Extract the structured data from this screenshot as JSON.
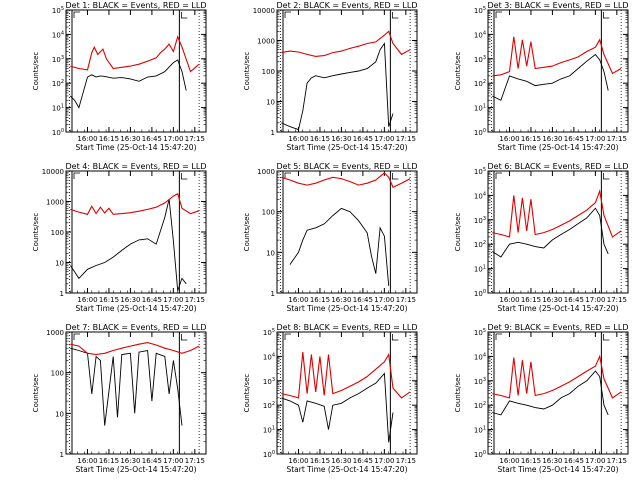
{
  "figure": {
    "ylabel": "Counts/sec",
    "xlabel": "Start Time (25-Oct-14 15:47:20)",
    "colors": {
      "events": "#000000",
      "lld": "#e00000",
      "marker": "#000000"
    }
  },
  "chart_data": [
    {
      "type": "line",
      "title": "Det 1: BLACK = Events, RED = LLD",
      "ylabel": "Counts/sec",
      "xlabel": "Start Time (25-Oct-14 15:47:20)",
      "x_ticks": [
        "16:00",
        "16:15",
        "16:30",
        "16:45",
        "17:00",
        "17:15"
      ],
      "y_scale": "log",
      "y_ticks": [
        "10^0",
        "10^1",
        "10^2",
        "10^3",
        "10^4",
        "10^5"
      ],
      "ylim": [
        1,
        100000
      ],
      "series": [
        {
          "color": "#000000",
          "x": [
            15.8,
            15.85,
            15.9,
            16.0,
            16.05,
            16.1,
            16.15,
            16.2,
            16.3,
            16.4,
            16.5,
            16.6,
            16.7,
            16.8,
            16.9,
            17.0,
            17.05,
            17.1,
            17.15
          ],
          "y": [
            30,
            20,
            10,
            180,
            220,
            180,
            200,
            190,
            160,
            170,
            150,
            120,
            180,
            200,
            300,
            700,
            900,
            300,
            50
          ]
        },
        {
          "color": "#e00000",
          "x": [
            15.8,
            15.9,
            16.0,
            16.05,
            16.08,
            16.12,
            16.18,
            16.22,
            16.3,
            16.4,
            16.5,
            16.6,
            16.7,
            16.8,
            16.85,
            16.9,
            16.95,
            17.0,
            17.05,
            17.1,
            17.2,
            17.3
          ],
          "y": [
            500,
            400,
            350,
            1800,
            3000,
            1500,
            2500,
            1000,
            400,
            450,
            500,
            600,
            800,
            1100,
            1800,
            2500,
            4000,
            2000,
            8000,
            3000,
            300,
            600
          ]
        }
      ]
    },
    {
      "type": "line",
      "title": "Det 2: BLACK = Events, RED = LLD",
      "ylabel": "Counts/sec",
      "xlabel": "Start Time (25-Oct-14 15:47:20)",
      "x_ticks": [
        "16:00",
        "16:15",
        "16:30",
        "16:45",
        "17:00",
        "17:15"
      ],
      "y_scale": "log",
      "y_ticks": [
        "1",
        "10",
        "100",
        "1000",
        "10000"
      ],
      "ylim": [
        1,
        10000
      ],
      "series": [
        {
          "color": "#000000",
          "x": [
            15.8,
            15.9,
            16.0,
            16.05,
            16.1,
            16.15,
            16.2,
            16.3,
            16.4,
            16.5,
            16.6,
            16.7,
            16.8,
            16.9,
            16.95,
            17.0,
            17.05,
            17.1
          ],
          "y": [
            2,
            1.5,
            1.2,
            5,
            40,
            60,
            70,
            60,
            70,
            80,
            90,
            100,
            120,
            200,
            500,
            800,
            1.5,
            4
          ]
        },
        {
          "color": "#e00000",
          "x": [
            15.8,
            15.9,
            16.0,
            16.1,
            16.2,
            16.3,
            16.4,
            16.5,
            16.6,
            16.7,
            16.8,
            16.9,
            17.0,
            17.05,
            17.1,
            17.2,
            17.3
          ],
          "y": [
            400,
            450,
            420,
            350,
            300,
            320,
            400,
            450,
            550,
            650,
            800,
            900,
            1500,
            2000,
            800,
            350,
            500
          ]
        }
      ]
    },
    {
      "type": "line",
      "title": "Det 3: BLACK = Events, RED = LLD",
      "ylabel": "Counts/sec",
      "xlabel": "Start Time (25-Oct-14 15:47:20)",
      "x_ticks": [
        "16:00",
        "16:15",
        "16:30",
        "16:45",
        "17:00",
        "17:15"
      ],
      "y_scale": "log",
      "y_ticks": [
        "10^0",
        "10^1",
        "10^2",
        "10^3",
        "10^4",
        "10^5"
      ],
      "ylim": [
        1,
        100000
      ],
      "series": [
        {
          "color": "#000000",
          "x": [
            15.8,
            15.9,
            16.0,
            16.1,
            16.2,
            16.3,
            16.4,
            16.5,
            16.6,
            16.7,
            16.8,
            16.9,
            17.0,
            17.05,
            17.1,
            17.15
          ],
          "y": [
            30,
            20,
            200,
            150,
            120,
            80,
            90,
            100,
            150,
            200,
            400,
            800,
            1500,
            900,
            300,
            50
          ]
        },
        {
          "color": "#e00000",
          "x": [
            15.8,
            15.9,
            16.0,
            16.05,
            16.1,
            16.15,
            16.2,
            16.25,
            16.3,
            16.4,
            16.5,
            16.6,
            16.7,
            16.8,
            16.9,
            17.0,
            17.05,
            17.1,
            17.2,
            17.3
          ],
          "y": [
            200,
            220,
            300,
            8000,
            400,
            6000,
            500,
            5000,
            400,
            450,
            500,
            700,
            900,
            1200,
            2000,
            3000,
            6000,
            1500,
            250,
            400
          ]
        }
      ]
    },
    {
      "type": "line",
      "title": "Det 4: BLACK = Events, RED = LLD",
      "ylabel": "Counts/sec",
      "xlabel": "Start Time (25-Oct-14 15:47:20)",
      "x_ticks": [
        "16:00",
        "16:15",
        "16:30",
        "16:45",
        "17:00",
        "17:15"
      ],
      "y_scale": "log",
      "y_ticks": [
        "1",
        "10",
        "100",
        "1000",
        "10000"
      ],
      "ylim": [
        1,
        10000
      ],
      "series": [
        {
          "color": "#000000",
          "x": [
            15.8,
            15.85,
            15.9,
            16.0,
            16.1,
            16.2,
            16.3,
            16.4,
            16.5,
            16.6,
            16.7,
            16.8,
            16.9,
            16.95,
            17.0,
            17.05,
            17.1,
            17.15
          ],
          "y": [
            8,
            5,
            3,
            6,
            8,
            10,
            15,
            25,
            40,
            55,
            60,
            40,
            300,
            1200,
            50,
            1.2,
            3,
            2
          ]
        },
        {
          "color": "#e00000",
          "x": [
            15.8,
            15.9,
            16.0,
            16.05,
            16.1,
            16.15,
            16.2,
            16.25,
            16.3,
            16.4,
            16.5,
            16.6,
            16.7,
            16.8,
            16.9,
            17.0,
            17.05,
            17.1,
            17.2,
            17.3
          ],
          "y": [
            550,
            450,
            380,
            700,
            400,
            650,
            420,
            600,
            380,
            400,
            430,
            480,
            550,
            650,
            900,
            1500,
            1800,
            600,
            400,
            500
          ]
        }
      ]
    },
    {
      "type": "line",
      "title": "Det 5: BLACK = Events, RED = LLD",
      "ylabel": "Counts/sec",
      "xlabel": "Start Time (25-Oct-14 15:47:20)",
      "x_ticks": [
        "16:00",
        "16:15",
        "16:30",
        "16:45",
        "17:00",
        "17:15"
      ],
      "y_scale": "log",
      "y_ticks": [
        "1",
        "10",
        "100",
        "1000"
      ],
      "ylim": [
        1,
        1000
      ],
      "series": [
        {
          "color": "#000000",
          "x": [
            15.9,
            16.0,
            16.05,
            16.1,
            16.2,
            16.3,
            16.4,
            16.5,
            16.6,
            16.7,
            16.8,
            16.85,
            16.9,
            16.95,
            17.0,
            17.05
          ],
          "y": [
            5,
            10,
            20,
            35,
            40,
            50,
            80,
            120,
            100,
            60,
            30,
            8,
            3,
            40,
            25,
            1.5
          ]
        },
        {
          "color": "#e00000",
          "x": [
            15.8,
            15.9,
            16.0,
            16.1,
            16.2,
            16.3,
            16.4,
            16.5,
            16.6,
            16.7,
            16.8,
            16.9,
            17.0,
            17.05,
            17.1,
            17.2,
            17.3
          ],
          "y": [
            700,
            600,
            500,
            450,
            500,
            600,
            700,
            650,
            550,
            450,
            500,
            600,
            900,
            700,
            400,
            500,
            650
          ]
        }
      ]
    },
    {
      "type": "line",
      "title": "Det 6: BLACK = Events, RED = LLD",
      "ylabel": "Counts/sec",
      "xlabel": "Start Time (25-Oct-14 15:47:20)",
      "x_ticks": [
        "16:00",
        "16:15",
        "16:30",
        "16:45",
        "17:00",
        "17:15"
      ],
      "y_scale": "log",
      "y_ticks": [
        "10^0",
        "10^1",
        "10^2",
        "10^3",
        "10^4",
        "10^5"
      ],
      "ylim": [
        1,
        100000
      ],
      "series": [
        {
          "color": "#000000",
          "x": [
            15.8,
            15.9,
            16.0,
            16.1,
            16.2,
            16.3,
            16.4,
            16.5,
            16.6,
            16.7,
            16.8,
            16.9,
            17.0,
            17.05,
            17.1,
            17.15
          ],
          "y": [
            50,
            30,
            100,
            120,
            100,
            80,
            70,
            150,
            250,
            400,
            700,
            1200,
            3000,
            1500,
            100,
            40
          ]
        },
        {
          "color": "#e00000",
          "x": [
            15.8,
            15.9,
            16.0,
            16.05,
            16.1,
            16.15,
            16.2,
            16.25,
            16.3,
            16.4,
            16.5,
            16.6,
            16.7,
            16.8,
            16.9,
            17.0,
            17.05,
            17.1,
            17.2,
            17.3
          ],
          "y": [
            300,
            250,
            200,
            10000,
            300,
            8000,
            350,
            7000,
            250,
            300,
            400,
            600,
            900,
            1500,
            2500,
            5000,
            15000,
            1500,
            200,
            350
          ]
        }
      ]
    },
    {
      "type": "line",
      "title": "Det 7: BLACK = Events, RED = LLD",
      "ylabel": "Counts/sec",
      "xlabel": "Start Time (25-Oct-14 15:47:20)",
      "x_ticks": [
        "16:00",
        "16:15",
        "16:30",
        "16:45",
        "17:00",
        "17:15"
      ],
      "y_scale": "log",
      "y_ticks": [
        "1",
        "10",
        "100",
        "1000"
      ],
      "ylim": [
        1,
        1000
      ],
      "series": [
        {
          "color": "#000000",
          "x": [
            15.8,
            15.9,
            16.0,
            16.05,
            16.1,
            16.15,
            16.2,
            16.3,
            16.35,
            16.4,
            16.5,
            16.55,
            16.6,
            16.7,
            16.75,
            16.8,
            16.9,
            16.95,
            17.0,
            17.05,
            17.1
          ],
          "y": [
            400,
            350,
            300,
            30,
            250,
            200,
            5,
            250,
            8,
            280,
            300,
            10,
            320,
            350,
            20,
            300,
            250,
            30,
            200,
            40,
            5
          ]
        },
        {
          "color": "#e00000",
          "x": [
            15.8,
            15.9,
            16.0,
            16.1,
            16.2,
            16.3,
            16.4,
            16.5,
            16.6,
            16.7,
            16.8,
            16.9,
            17.0,
            17.1,
            17.2,
            17.3
          ],
          "y": [
            500,
            450,
            300,
            280,
            300,
            350,
            400,
            450,
            500,
            550,
            480,
            400,
            350,
            300,
            350,
            450
          ]
        }
      ]
    },
    {
      "type": "line",
      "title": "Det 8: BLACK = Events, RED = LLD",
      "ylabel": "Counts/sec",
      "xlabel": "Start Time (25-Oct-14 15:47:20)",
      "x_ticks": [
        "16:00",
        "16:15",
        "16:30",
        "16:45",
        "17:00",
        "17:15"
      ],
      "y_scale": "log",
      "y_ticks": [
        "10^0",
        "10^1",
        "10^2",
        "10^3",
        "10^4",
        "10^5"
      ],
      "ylim": [
        1,
        100000
      ],
      "series": [
        {
          "color": "#000000",
          "x": [
            15.8,
            15.9,
            16.0,
            16.05,
            16.1,
            16.2,
            16.3,
            16.35,
            16.4,
            16.5,
            16.6,
            16.7,
            16.8,
            16.9,
            17.0,
            17.05,
            17.1
          ],
          "y": [
            200,
            150,
            100,
            20,
            150,
            120,
            90,
            10,
            100,
            120,
            200,
            300,
            500,
            800,
            2000,
            3,
            50
          ]
        },
        {
          "color": "#e00000",
          "x": [
            15.8,
            15.9,
            16.0,
            16.05,
            16.1,
            16.15,
            16.2,
            16.25,
            16.3,
            16.35,
            16.4,
            16.5,
            16.6,
            16.7,
            16.8,
            16.9,
            17.0,
            17.05,
            17.1,
            17.2,
            17.3
          ],
          "y": [
            300,
            250,
            200,
            15000,
            300,
            12000,
            350,
            10000,
            250,
            12000,
            300,
            400,
            600,
            900,
            1500,
            3000,
            6000,
            12000,
            500,
            200,
            350
          ]
        }
      ]
    },
    {
      "type": "line",
      "title": "Det 9: BLACK = Events, RED = LLD",
      "ylabel": "Counts/sec",
      "xlabel": "Start Time (25-Oct-14 15:47:20)",
      "x_ticks": [
        "16:00",
        "16:15",
        "16:30",
        "16:45",
        "17:00",
        "17:15"
      ],
      "y_scale": "log",
      "y_ticks": [
        "10^0",
        "10^1",
        "10^2",
        "10^3",
        "10^4",
        "10^5"
      ],
      "ylim": [
        1,
        100000
      ],
      "series": [
        {
          "color": "#000000",
          "x": [
            15.8,
            15.9,
            16.0,
            16.1,
            16.2,
            16.3,
            16.4,
            16.5,
            16.6,
            16.7,
            16.8,
            16.9,
            17.0,
            17.05,
            17.1,
            17.15
          ],
          "y": [
            50,
            40,
            150,
            120,
            100,
            80,
            70,
            100,
            200,
            300,
            600,
            1000,
            2500,
            1500,
            100,
            40
          ]
        },
        {
          "color": "#e00000",
          "x": [
            15.8,
            15.9,
            16.0,
            16.05,
            16.1,
            16.15,
            16.2,
            16.25,
            16.3,
            16.4,
            16.5,
            16.6,
            16.7,
            16.8,
            16.9,
            17.0,
            17.05,
            17.1,
            17.2,
            17.3
          ],
          "y": [
            300,
            250,
            200,
            9000,
            250,
            7000,
            300,
            6000,
            250,
            300,
            400,
            600,
            900,
            1500,
            2500,
            4000,
            10000,
            1200,
            200,
            350
          ]
        }
      ]
    }
  ]
}
